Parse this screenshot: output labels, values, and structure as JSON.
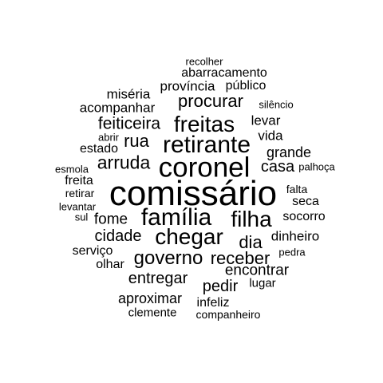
{
  "word_cloud": {
    "words": [
      "recolher",
      "abarracamento",
      "província",
      "público",
      "miséria",
      "procurar",
      "acompanhar",
      "silêncio",
      "feiticeira",
      "freitas",
      "levar",
      "abrir",
      "rua",
      "vida",
      "retirante",
      "estado",
      "grande",
      "arruda",
      "coronel",
      "casa",
      "palhoça",
      "esmola",
      "freita",
      "falta",
      "comissário",
      "retirar",
      "seca",
      "levantar",
      "sul",
      "fome",
      "família",
      "filha",
      "socorro",
      "cidade",
      "chegar",
      "dinheiro",
      "dia",
      "serviço",
      "pedra",
      "governo",
      "receber",
      "olhar",
      "encontrar",
      "entregar",
      "lugar",
      "pedir",
      "aproximar",
      "infeliz",
      "clemente",
      "companheiro"
    ],
    "colors": {
      "text": "#000000",
      "background": "#ffffff"
    }
  }
}
